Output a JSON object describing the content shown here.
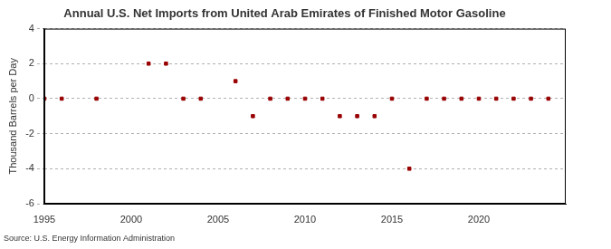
{
  "chart_data": {
    "type": "scatter",
    "title": "Annual U.S. Net Imports from United Arab Emirates of Finished Motor Gasoline",
    "y_label": "Thousand Barrels per Day",
    "source": "Source: U.S. Energy Information Administration",
    "x": [
      1995,
      1996,
      1997,
      1998,
      1999,
      2000,
      2001,
      2002,
      2003,
      2004,
      2005,
      2006,
      2007,
      2008,
      2009,
      2010,
      2011,
      2012,
      2013,
      2014,
      2015,
      2016,
      2017,
      2018,
      2019,
      2020,
      2021,
      2022,
      2023,
      2024
    ],
    "values": [
      0,
      0,
      null,
      0,
      null,
      null,
      2,
      2,
      0,
      0,
      null,
      1,
      -1,
      0,
      0,
      0,
      0,
      -1,
      -1,
      -1,
      0,
      -4,
      0,
      0,
      0,
      0,
      0,
      0,
      0,
      0
    ],
    "color": "#990000",
    "marker": "square",
    "xlim": [
      1995,
      2025
    ],
    "xticks": [
      1995,
      2000,
      2005,
      2010,
      2015,
      2020
    ],
    "ylim": [
      -6,
      4
    ],
    "yticks": [
      -6,
      -4,
      -2,
      0,
      2,
      4
    ],
    "grid": true
  }
}
